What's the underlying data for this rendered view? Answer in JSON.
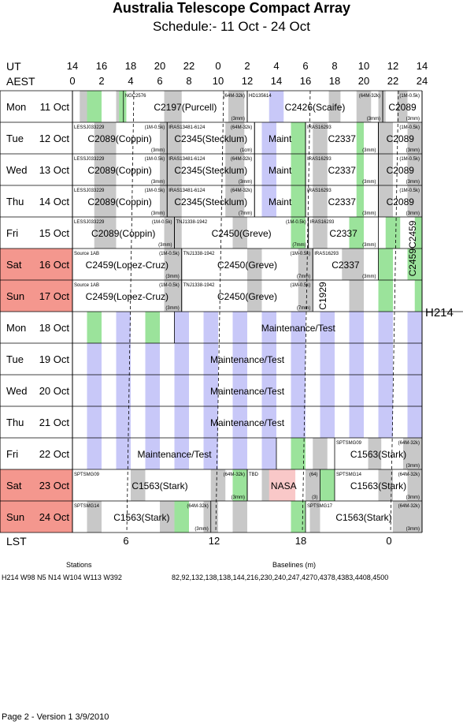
{
  "title": "Australia Telescope Compact Array",
  "subtitle": "Schedule:- 11 Oct - 24 Oct",
  "ut_label": "UT",
  "aest_label": "AEST",
  "lst_label": "LST",
  "ut_ticks": [
    "14",
    "16",
    "18",
    "20",
    "22",
    "0",
    "2",
    "4",
    "6",
    "8",
    "10",
    "12",
    "14"
  ],
  "aest_ticks": [
    "0",
    "2",
    "4",
    "6",
    "8",
    "10",
    "12",
    "14",
    "16",
    "18",
    "20",
    "22",
    "24"
  ],
  "lst_ticks": [
    "6",
    "12",
    "18",
    "0"
  ],
  "days": [
    {
      "wd": "Mon",
      "date": "11 Oct",
      "weekend": false
    },
    {
      "wd": "Tue",
      "date": "12 Oct",
      "weekend": false
    },
    {
      "wd": "Wed",
      "date": "13 Oct",
      "weekend": false
    },
    {
      "wd": "Thu",
      "date": "14 Oct",
      "weekend": false
    },
    {
      "wd": "Fri",
      "date": "15 Oct",
      "weekend": false
    },
    {
      "wd": "Sat",
      "date": "16 Oct",
      "weekend": true
    },
    {
      "wd": "Sun",
      "date": "17 Oct",
      "weekend": true
    },
    {
      "wd": "Mon",
      "date": "18 Oct",
      "weekend": false
    },
    {
      "wd": "Tue",
      "date": "19 Oct",
      "weekend": false
    },
    {
      "wd": "Wed",
      "date": "20 Oct",
      "weekend": false
    },
    {
      "wd": "Thu",
      "date": "21 Oct",
      "weekend": false
    },
    {
      "wd": "Fri",
      "date": "22 Oct",
      "weekend": false
    },
    {
      "wd": "Sat",
      "date": "23 Oct",
      "weekend": true
    },
    {
      "wd": "Sun",
      "date": "24 Oct",
      "weekend": true
    }
  ],
  "config_label": "H214",
  "stations_heading": "Stations",
  "stations": "H214   W98 N5 N14 W104 W113 W392",
  "baselines_heading": "Baselines (m)",
  "baselines": "82,92,132,138,138,144,216,230,240,247,4270,4378,4383,4408,4500",
  "footer": "Page 2 - Version 1  3/9/2010",
  "colors": {
    "weekend": "#f4978e",
    "grey": "#c8c8c8",
    "green": "#9be39b",
    "blue": "#c8c8f8",
    "pink": "#f9c8c8"
  }
}
